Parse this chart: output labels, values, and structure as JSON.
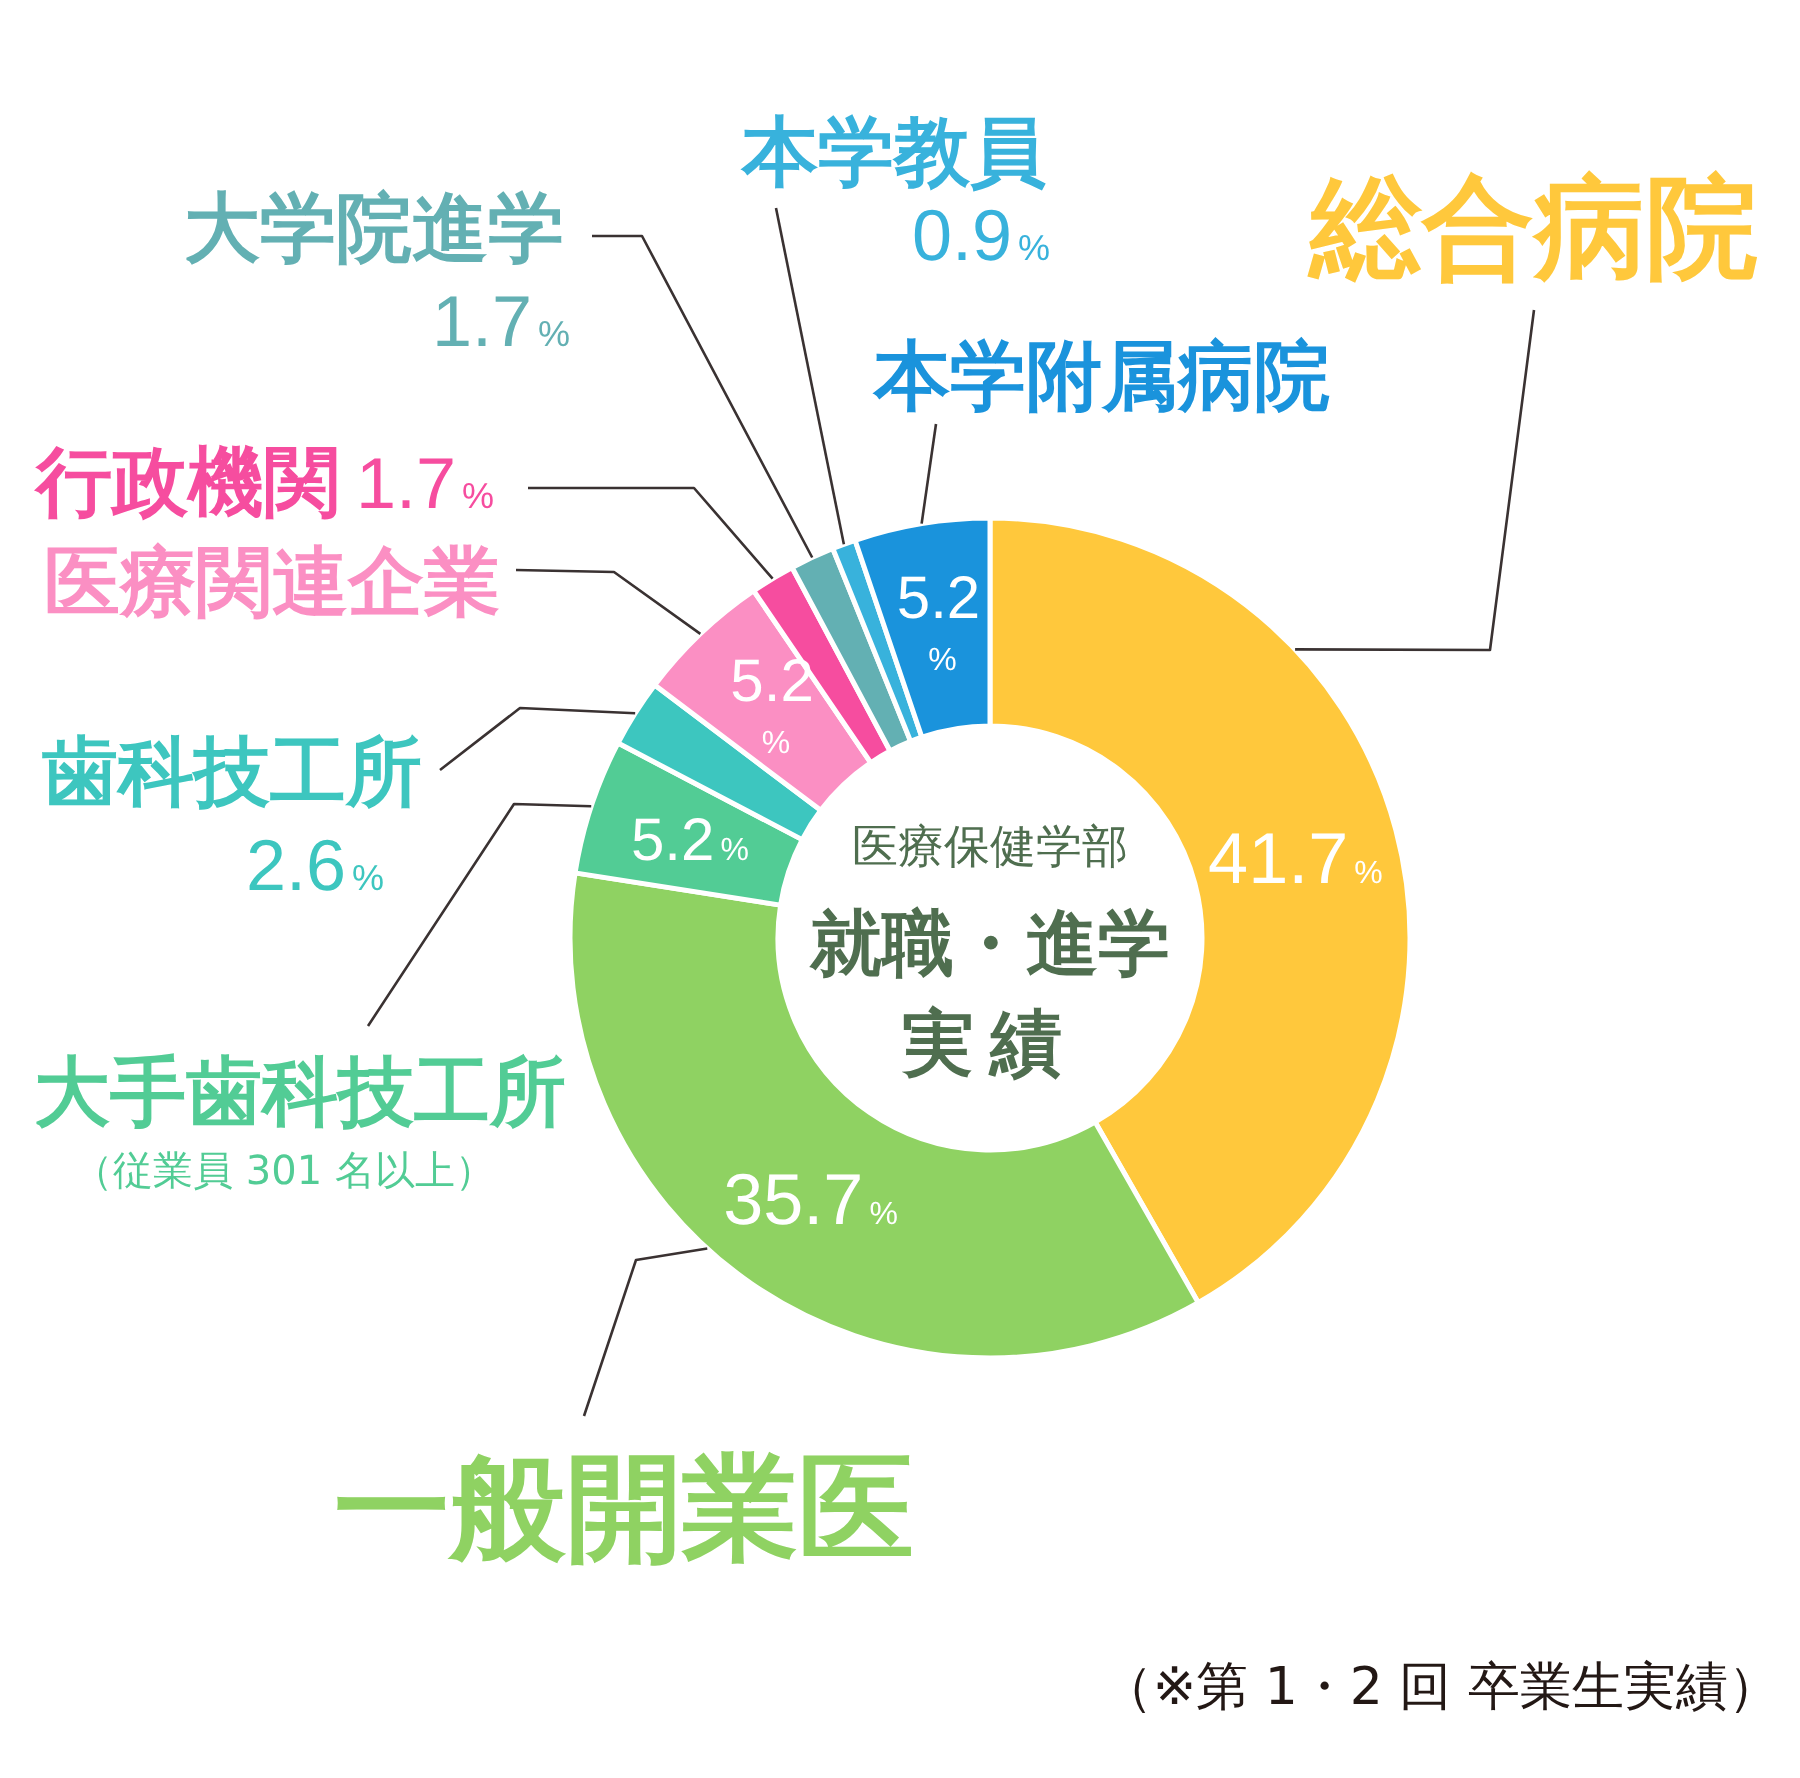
{
  "chart_data": {
    "type": "donut",
    "title": "就職・進学実績",
    "subtitle": "医療保健学部",
    "categories": [
      "総合病院",
      "一般開業医",
      "大手歯科技工所（従業員 301 名以上）",
      "歯科技工所",
      "医療関連企業",
      "行政機関",
      "大学院進学",
      "本学教員",
      "本学附属病院"
    ],
    "values": [
      41.7,
      35.7,
      5.2,
      2.6,
      5.2,
      1.7,
      1.7,
      0.9,
      5.2
    ],
    "value_labels": [
      "41.7%",
      "35.7%",
      "5.2%",
      "2.6%",
      "5.2%",
      "1.7%",
      "1.7%",
      "0.9%",
      "5.2%"
    ],
    "colors": [
      "#ffc83c",
      "#8fd262",
      "#52cc95",
      "#3dc6bf",
      "#fb8fc3",
      "#f64d9f",
      "#63b0b3",
      "#38b2dc",
      "#1a93dc"
    ],
    "annotations": [
      "（※第 1・2 回 卒業生実績）"
    ]
  }
}
